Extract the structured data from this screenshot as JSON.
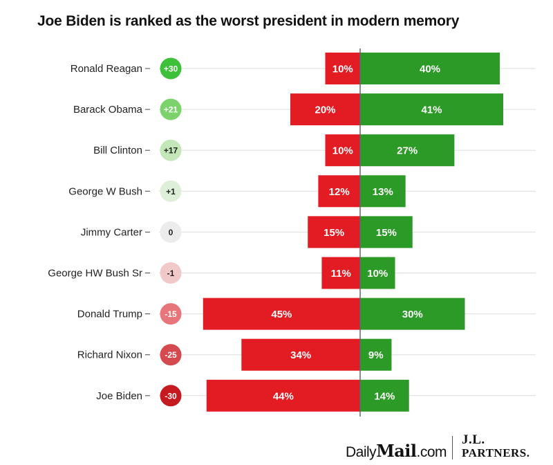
{
  "title": "Joe Biden is ranked as the worst president in modern memory",
  "colors": {
    "negative": "#e31b23",
    "positive": "#2c9a26",
    "gridline": "#dddddd",
    "axis": "#666666",
    "name_text": "#222222"
  },
  "chart_data": {
    "type": "bar",
    "subtype": "diverging-horizontal",
    "title": "Joe Biden is ranked as the worst president in modern memory",
    "xlabel": "",
    "ylabel": "",
    "grid": true,
    "xlim": [
      -50,
      50
    ],
    "categories": [
      "Ronald Reagan",
      "Barack Obama",
      "Bill Clinton",
      "George W Bush",
      "Jimmy Carter",
      "George HW Bush Sr",
      "Donald Trump",
      "Richard Nixon",
      "Joe Biden"
    ],
    "net_scores": [
      "+30",
      "+21",
      "+17",
      "+1",
      "0",
      "-1",
      "-15",
      "-25",
      "-30"
    ],
    "net_colors": [
      "#3ec03a",
      "#7dd36b",
      "#c3e7b8",
      "#deefd9",
      "#ececec",
      "#f1c9c9",
      "#e7757a",
      "#d44a4f",
      "#c41a20"
    ],
    "net_text_colors": [
      "#ffffff",
      "#ffffff",
      "#222222",
      "#222222",
      "#222222",
      "#222222",
      "#ffffff",
      "#ffffff",
      "#ffffff"
    ],
    "series": [
      {
        "color": "#e31b23",
        "side": "left",
        "values": [
          10,
          20,
          10,
          12,
          15,
          11,
          45,
          34,
          44
        ],
        "labels": [
          "10%",
          "20%",
          "10%",
          "12%",
          "15%",
          "11%",
          "45%",
          "34%",
          "44%"
        ]
      },
      {
        "color": "#2c9a26",
        "side": "right",
        "values": [
          40,
          41,
          27,
          13,
          15,
          10,
          30,
          9,
          14
        ],
        "labels": [
          "40%",
          "41%",
          "27%",
          "13%",
          "15%",
          "10%",
          "30%",
          "9%",
          "14%"
        ]
      }
    ]
  },
  "footer": {
    "daily": "Daily",
    "mail": "Mail",
    "dotcom": ".com",
    "jl": "J.L.",
    "partners": "PARTNERS."
  }
}
